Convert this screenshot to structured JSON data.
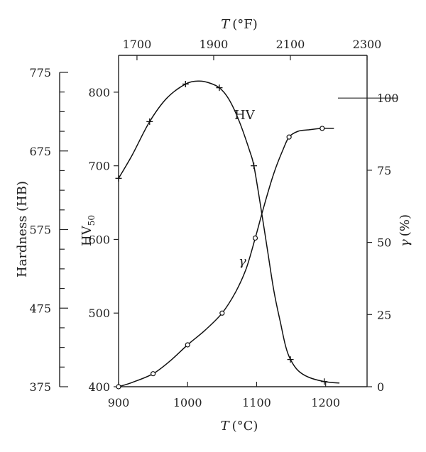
{
  "chart_data": {
    "type": "line",
    "x_bottom": {
      "title_var": "T",
      "title_unit": "(°C)",
      "range": [
        900,
        1260
      ],
      "ticks": [
        900,
        1000,
        1100,
        1200
      ],
      "tick_labels": [
        "900",
        "1000",
        "1100",
        "1200"
      ]
    },
    "x_top": {
      "title_var": "T",
      "title_unit": "(°F)",
      "range": [
        1652,
        2300
      ],
      "ticks": [
        1700,
        1900,
        2100,
        2300
      ],
      "tick_labels": [
        "1700",
        "1900",
        "2100",
        "2300"
      ]
    },
    "y_left_hv": {
      "title_main": "HV",
      "title_sub": "50",
      "range": [
        400,
        850
      ],
      "ticks": [
        400,
        500,
        600,
        700,
        800
      ],
      "tick_labels": [
        "400",
        "500",
        "600",
        "700",
        "800"
      ]
    },
    "y_left_hb": {
      "title": "Hardness (HB)",
      "range": [
        375,
        775
      ],
      "ticks": [
        375,
        475,
        575,
        675,
        775
      ],
      "tick_labels": [
        "375",
        "475",
        "575",
        "675",
        "775"
      ],
      "minor_step": 25
    },
    "y_right": {
      "title_var": "γ",
      "title_unit": "(%)",
      "range": [
        0,
        114.8
      ],
      "ticks": [
        0,
        25,
        50,
        75,
        100
      ],
      "tick_labels": [
        "0",
        "25",
        "50",
        "75",
        "100"
      ]
    },
    "series": [
      {
        "name": "HV",
        "axis": "y_left_hv",
        "marker": "plus",
        "points": [
          [
            900,
            683
          ],
          [
            945,
            760
          ],
          [
            997,
            811
          ],
          [
            1046,
            806
          ],
          [
            1096,
            700
          ],
          [
            1149,
            437
          ],
          [
            1198,
            407
          ]
        ],
        "curve": [
          [
            900,
            683
          ],
          [
            920,
            715
          ],
          [
            945,
            760
          ],
          [
            970,
            792
          ],
          [
            997,
            811
          ],
          [
            1015,
            815
          ],
          [
            1030,
            813
          ],
          [
            1046,
            806
          ],
          [
            1060,
            790
          ],
          [
            1075,
            760
          ],
          [
            1090,
            720
          ],
          [
            1096,
            700
          ],
          [
            1105,
            650
          ],
          [
            1115,
            590
          ],
          [
            1125,
            530
          ],
          [
            1135,
            485
          ],
          [
            1142,
            455
          ],
          [
            1149,
            437
          ],
          [
            1160,
            422
          ],
          [
            1175,
            413
          ],
          [
            1198,
            407
          ],
          [
            1220,
            405
          ]
        ]
      },
      {
        "name": "γ",
        "axis": "y_right",
        "marker": "circle",
        "points": [
          [
            900,
            0
          ],
          [
            950,
            4.5
          ],
          [
            1000,
            14.5
          ],
          [
            1050,
            25.5
          ],
          [
            1098,
            51.5
          ],
          [
            1147,
            86.5
          ],
          [
            1195,
            89.5
          ]
        ],
        "curve": [
          [
            900,
            0
          ],
          [
            920,
            1.5
          ],
          [
            950,
            4.5
          ],
          [
            975,
            9
          ],
          [
            1000,
            14.5
          ],
          [
            1025,
            19.5
          ],
          [
            1050,
            25.5
          ],
          [
            1070,
            33
          ],
          [
            1085,
            41
          ],
          [
            1098,
            51.5
          ],
          [
            1110,
            62
          ],
          [
            1125,
            74
          ],
          [
            1138,
            82
          ],
          [
            1147,
            86.5
          ],
          [
            1160,
            88.5
          ],
          [
            1175,
            89
          ],
          [
            1195,
            89.5
          ],
          [
            1212,
            89.5
          ]
        ]
      }
    ],
    "labels": {
      "hv_curve": "HV",
      "gamma_curve": "γ"
    }
  }
}
